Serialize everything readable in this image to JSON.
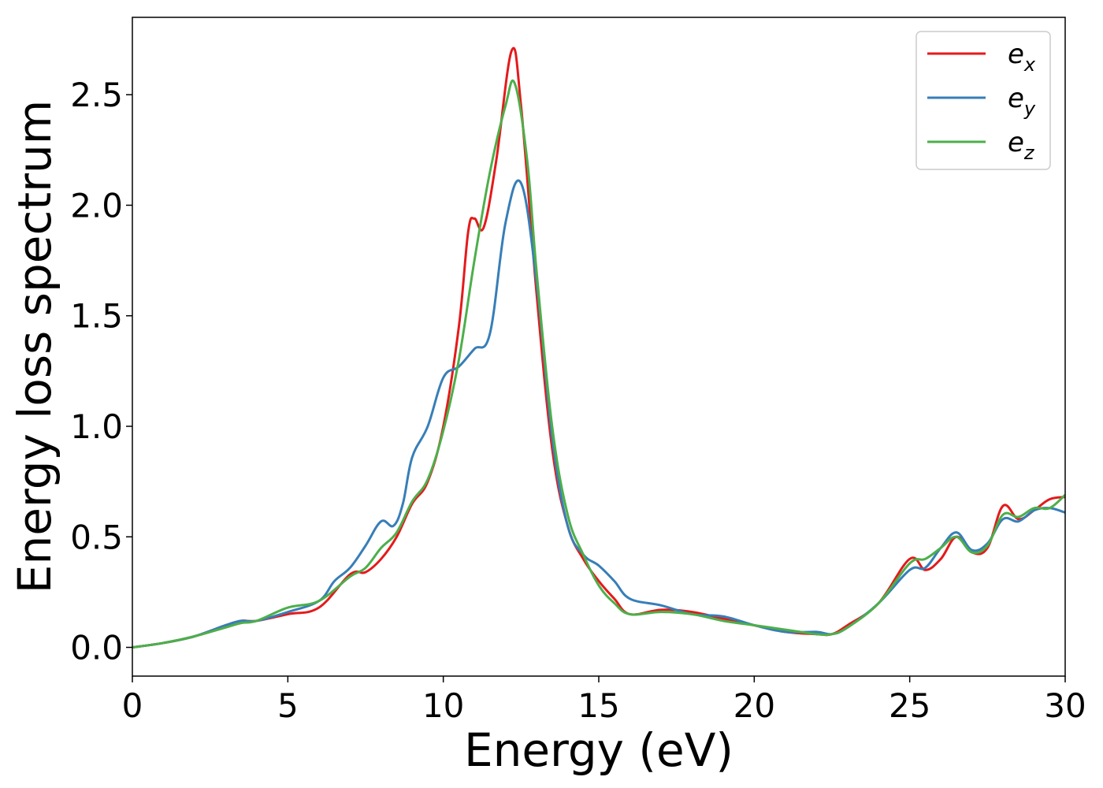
{
  "chart_data": {
    "type": "line",
    "title": "",
    "xlabel": "Energy (eV)",
    "ylabel": "Energy loss spectrum",
    "xlim": [
      0,
      30
    ],
    "ylim": [
      -0.13,
      2.85
    ],
    "xticks": [
      0,
      5,
      10,
      15,
      20,
      25,
      30
    ],
    "xtick_labels": [
      "0",
      "5",
      "10",
      "15",
      "20",
      "25",
      "30"
    ],
    "yticks": [
      0.0,
      0.5,
      1.0,
      1.5,
      2.0,
      2.5
    ],
    "ytick_labels": [
      "0.0",
      "0.5",
      "1.0",
      "1.5",
      "2.0",
      "2.5"
    ],
    "grid": false,
    "legend_position": "top-right",
    "series": [
      {
        "name": "e",
        "subscript": "x",
        "color": "#e41a1c",
        "x": [
          0,
          1,
          2,
          3,
          3.5,
          4,
          5,
          6,
          7,
          7.5,
          8,
          8.5,
          9,
          9.5,
          10,
          10.5,
          10.8,
          11,
          11.3,
          11.7,
          12.2,
          12.5,
          13,
          13.5,
          14,
          14.5,
          15,
          15.5,
          16,
          17,
          18,
          19,
          20,
          21,
          22,
          22.5,
          23,
          24,
          25,
          25.5,
          26,
          26.5,
          27,
          27.5,
          28,
          28.5,
          29,
          29.5,
          30
        ],
        "y": [
          0.0,
          0.02,
          0.05,
          0.1,
          0.12,
          0.12,
          0.15,
          0.18,
          0.33,
          0.34,
          0.4,
          0.5,
          0.65,
          0.75,
          1.0,
          1.45,
          1.88,
          1.94,
          1.9,
          2.2,
          2.7,
          2.45,
          1.6,
          0.9,
          0.55,
          0.4,
          0.3,
          0.22,
          0.15,
          0.17,
          0.16,
          0.13,
          0.1,
          0.07,
          0.06,
          0.06,
          0.1,
          0.2,
          0.4,
          0.35,
          0.4,
          0.5,
          0.43,
          0.45,
          0.64,
          0.58,
          0.62,
          0.67,
          0.68
        ]
      },
      {
        "name": "e",
        "subscript": "y",
        "color": "#377eb8",
        "x": [
          0,
          1,
          2,
          3,
          3.5,
          4,
          5,
          6,
          6.5,
          7,
          7.5,
          8,
          8.4,
          8.7,
          9,
          9.5,
          10,
          10.5,
          11,
          11.5,
          12,
          12.5,
          13,
          13.5,
          14,
          14.5,
          15,
          15.5,
          16,
          17,
          18,
          19,
          20,
          21,
          22,
          22.5,
          23,
          24,
          25,
          25.5,
          26,
          26.5,
          27,
          27.5,
          28,
          28.5,
          29,
          29.5,
          30
        ],
        "y": [
          0.0,
          0.02,
          0.05,
          0.1,
          0.12,
          0.12,
          0.16,
          0.21,
          0.3,
          0.36,
          0.46,
          0.57,
          0.55,
          0.65,
          0.86,
          1.0,
          1.22,
          1.27,
          1.35,
          1.42,
          1.92,
          2.1,
          1.65,
          0.95,
          0.55,
          0.42,
          0.37,
          0.3,
          0.22,
          0.19,
          0.15,
          0.14,
          0.1,
          0.07,
          0.07,
          0.06,
          0.09,
          0.2,
          0.35,
          0.36,
          0.45,
          0.52,
          0.44,
          0.47,
          0.58,
          0.57,
          0.62,
          0.63,
          0.61
        ]
      },
      {
        "name": "e",
        "subscript": "z",
        "color": "#4daf4a",
        "x": [
          0,
          1,
          2,
          3,
          3.5,
          4,
          5,
          6,
          7,
          7.5,
          8,
          8.5,
          9,
          9.5,
          10,
          10.5,
          11,
          11.5,
          12,
          12.3,
          12.7,
          13,
          13.5,
          14,
          14.5,
          15,
          15.5,
          16,
          17,
          18,
          19,
          20,
          21,
          22,
          22.5,
          23,
          24,
          25,
          25.5,
          26,
          26.5,
          27,
          27.5,
          28,
          28.5,
          29,
          29.5,
          30
        ],
        "y": [
          0.0,
          0.02,
          0.05,
          0.09,
          0.11,
          0.12,
          0.18,
          0.21,
          0.32,
          0.36,
          0.45,
          0.52,
          0.66,
          0.76,
          0.98,
          1.3,
          1.75,
          2.15,
          2.45,
          2.55,
          2.2,
          1.7,
          1.0,
          0.6,
          0.42,
          0.28,
          0.2,
          0.15,
          0.16,
          0.15,
          0.12,
          0.1,
          0.08,
          0.06,
          0.06,
          0.09,
          0.2,
          0.38,
          0.4,
          0.45,
          0.5,
          0.43,
          0.46,
          0.6,
          0.59,
          0.63,
          0.63,
          0.69
        ]
      }
    ]
  }
}
